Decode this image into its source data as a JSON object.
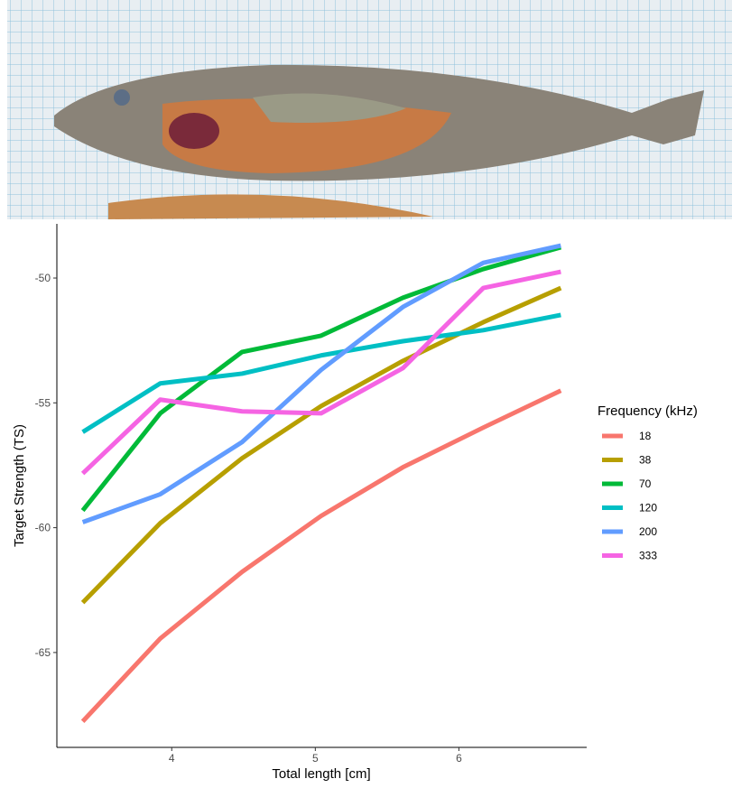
{
  "chart_data": {
    "type": "line",
    "x_label": "Total length [cm]",
    "y_label": "Target Strength (TS)",
    "legend_title": "Frequency (kHz)",
    "legend_position": "right",
    "x": [
      3.38,
      3.92,
      4.49,
      5.04,
      5.61,
      6.17,
      6.71
    ],
    "xlim": [
      3.2,
      6.89
    ],
    "xticks": [
      4,
      5,
      6
    ],
    "ylim": [
      -68.8,
      -47.83
    ],
    "yticks": [
      -65,
      -60,
      -55,
      -50
    ],
    "series": [
      {
        "name": "18",
        "color": "#f8766d",
        "values": [
          -67.76,
          -64.44,
          -61.77,
          -59.53,
          -57.58,
          -55.99,
          -54.51
        ]
      },
      {
        "name": "38",
        "color": "#b79f00",
        "values": [
          -63.0,
          -59.82,
          -57.22,
          -55.13,
          -53.32,
          -51.77,
          -50.4
        ]
      },
      {
        "name": "70",
        "color": "#00ba38",
        "values": [
          -59.31,
          -55.42,
          -52.96,
          -52.31,
          -50.79,
          -49.64,
          -48.77
        ]
      },
      {
        "name": "120",
        "color": "#00bfc4",
        "values": [
          -56.17,
          -54.22,
          -53.83,
          -53.1,
          -52.53,
          -52.09,
          -51.48
        ]
      },
      {
        "name": "200",
        "color": "#619cff",
        "values": [
          -59.78,
          -58.66,
          -56.57,
          -53.68,
          -51.16,
          -49.39,
          -48.7
        ]
      },
      {
        "name": "333",
        "color": "#f564e3",
        "values": [
          -57.83,
          -54.87,
          -55.34,
          -55.42,
          -53.61,
          -50.4,
          -49.75
        ]
      }
    ]
  }
}
